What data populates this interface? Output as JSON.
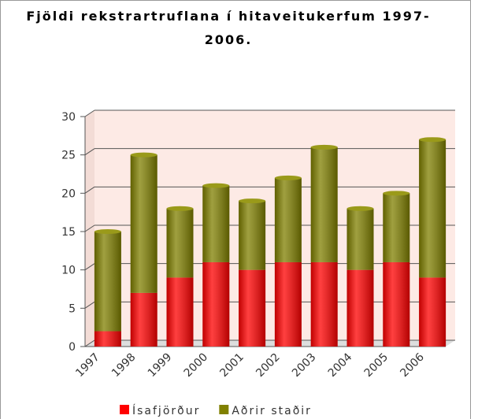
{
  "chart_data": {
    "type": "bar",
    "stacked": true,
    "title": "Fjöldi rekstrartruflana í hitaveitukerfum 1997-2006.",
    "categories": [
      "1997",
      "1998",
      "1999",
      "2000",
      "2001",
      "2002",
      "2003",
      "2004",
      "2005",
      "2006"
    ],
    "series": [
      {
        "name": "Ísafjörður",
        "color": "#ff0000",
        "values": [
          2,
          7,
          9,
          11,
          10,
          11,
          11,
          10,
          11,
          9
        ]
      },
      {
        "name": "Aðrir staðir",
        "color": "#808000",
        "values": [
          13,
          18,
          9,
          10,
          9,
          11,
          15,
          8,
          9,
          18
        ]
      }
    ],
    "ylim": [
      0,
      30
    ],
    "yticks": [
      0,
      5,
      10,
      15,
      20,
      25,
      30
    ],
    "grid": true,
    "legend": "bottom"
  }
}
